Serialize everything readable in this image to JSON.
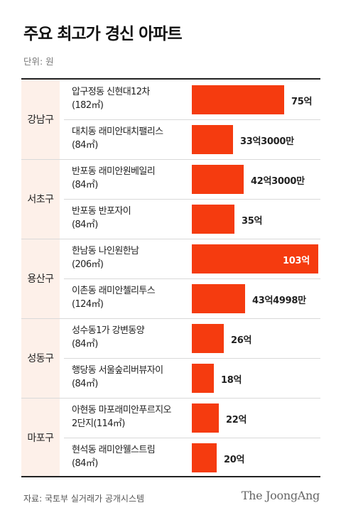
{
  "title": "주요 최고가 경신 아파트",
  "unit": "단위: 원",
  "source": "자료: 국토부 실거래가 공개시스템",
  "brand": "The JoongAng",
  "colors": {
    "bar": "#f53b0f",
    "region_bg": "#fdf0e9"
  },
  "chart_data": {
    "type": "bar",
    "orientation": "horizontal",
    "value_unit": "억원",
    "xlim": [
      0,
      103
    ],
    "groups": [
      {
        "region": "강남구",
        "items": [
          {
            "name": "압구정동 신현대12차",
            "area": "(182㎡)",
            "value": 75,
            "label": "75억"
          },
          {
            "name": "대치동 래미안대치팰리스",
            "area": "(84㎡)",
            "value": 33.3,
            "label": "33억3000만"
          }
        ]
      },
      {
        "region": "서초구",
        "items": [
          {
            "name": "반포동 래미안원베일리",
            "area": "(84㎡)",
            "value": 42.3,
            "label": "42억3000만"
          },
          {
            "name": "반포동 반포자이",
            "area": "(84㎡)",
            "value": 35,
            "label": "35억"
          }
        ]
      },
      {
        "region": "용산구",
        "items": [
          {
            "name": "한남동 나인원한남",
            "area": "(206㎡)",
            "value": 103,
            "label": "103억"
          },
          {
            "name": "이촌동 래미안첼리투스",
            "area": "(124㎡)",
            "value": 43.4998,
            "label": "43억4998만"
          }
        ]
      },
      {
        "region": "성동구",
        "items": [
          {
            "name": "성수동1가 강변동양",
            "area": "(84㎡)",
            "value": 26,
            "label": "26억"
          },
          {
            "name": "행당동 서울숲리버뷰자이",
            "area": "(84㎡)",
            "value": 18,
            "label": "18억"
          }
        ]
      },
      {
        "region": "마포구",
        "items": [
          {
            "name": "아현동 마포래미안푸르지오",
            "area": "2단지(114㎡)",
            "value": 22,
            "label": "22억"
          },
          {
            "name": "현석동 래미안웰스트림",
            "area": "(84㎡)",
            "value": 20,
            "label": "20억"
          }
        ]
      }
    ]
  }
}
